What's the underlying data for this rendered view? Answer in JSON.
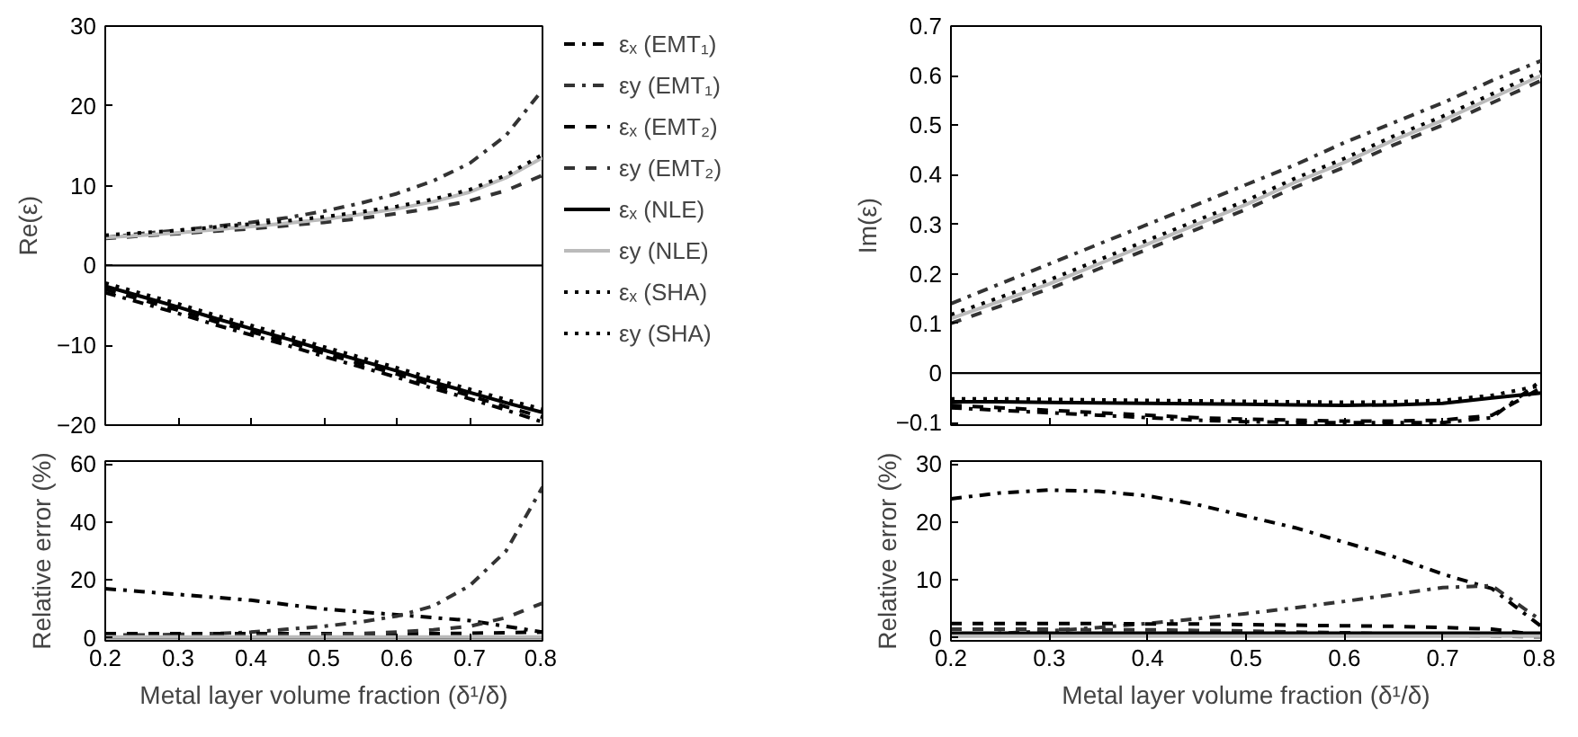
{
  "chart_data": [
    {
      "type": "line",
      "ylabel": "Re(ε)",
      "x": [
        0.2,
        0.25,
        0.3,
        0.35,
        0.4,
        0.45,
        0.5,
        0.55,
        0.6,
        0.65,
        0.7,
        0.75,
        0.8
      ],
      "xlim": [
        0.2,
        0.8
      ],
      "xticks": [
        0.2,
        0.3,
        0.4,
        0.5,
        0.6,
        0.7,
        0.8
      ],
      "ylim": [
        -20,
        30
      ],
      "yticks": [
        -20,
        -10,
        0,
        10,
        20,
        30
      ],
      "tick_labels": "y",
      "legend": "right",
      "ref_lines": [
        {
          "axis": "y",
          "value": 0,
          "color": "#000000"
        }
      ],
      "series": [
        {
          "name": "εₓ (EMT₁)",
          "color": "#000000",
          "line_style": "dashdot",
          "values": [
            -3.4,
            -4.7,
            -6,
            -7.4,
            -8.7,
            -10,
            -11.4,
            -12.7,
            -14,
            -15.4,
            -16.7,
            -18.1,
            -19.6
          ]
        },
        {
          "name": "εy (EMT₁)",
          "color": "#333333",
          "line_style": "dashdot",
          "values": [
            3.5,
            4,
            4.4,
            4.9,
            5.4,
            6,
            6.8,
            7.8,
            9,
            10.6,
            12.8,
            16.3,
            22
          ]
        },
        {
          "name": "εₓ (EMT₂)",
          "color": "#000000",
          "line_style": "dashed",
          "values": [
            -3,
            -4.3,
            -5.6,
            -7,
            -8.3,
            -9.6,
            -11,
            -12.3,
            -13.6,
            -15,
            -16.3,
            -17.7,
            -19
          ]
        },
        {
          "name": "εy (EMT₂)",
          "color": "#333333",
          "line_style": "dashed",
          "values": [
            3.4,
            3.7,
            4,
            4.3,
            4.6,
            5,
            5.4,
            5.9,
            6.5,
            7.2,
            8.1,
            9.4,
            11.3
          ]
        },
        {
          "name": "εₓ (NLE)",
          "color": "#000000",
          "line_style": "solid",
          "values": [
            -2.6,
            -3.9,
            -5.2,
            -6.6,
            -7.9,
            -9.2,
            -10.6,
            -11.9,
            -13.2,
            -14.6,
            -15.9,
            -17.2,
            -18.4
          ]
        },
        {
          "name": "εy (NLE)",
          "color": "#bbbbbb",
          "line_style": "solid",
          "values": [
            3.5,
            3.8,
            4.1,
            4.5,
            4.9,
            5.3,
            5.8,
            6.4,
            7.1,
            8,
            9.2,
            11,
            13.5
          ]
        },
        {
          "name": "εₓ (SHA)",
          "color": "#000000",
          "line_style": "dotted",
          "values": [
            -2.2,
            -3.5,
            -4.8,
            -6.2,
            -7.5,
            -8.8,
            -10.2,
            -11.5,
            -12.8,
            -14.2,
            -15.5,
            -16.8,
            -18
          ]
        },
        {
          "name": "εy (SHA)",
          "color": "#000000",
          "line_style": "dotted",
          "values": [
            3.8,
            4.1,
            4.4,
            4.8,
            5.2,
            5.6,
            6.1,
            6.7,
            7.4,
            8.3,
            9.5,
            11.3,
            13.9
          ]
        }
      ]
    },
    {
      "type": "line",
      "ylabel": "Relative error (%)",
      "xlabel": "Metal layer volume fraction (δ¹/δ)",
      "x": [
        0.2,
        0.25,
        0.3,
        0.35,
        0.4,
        0.45,
        0.5,
        0.55,
        0.6,
        0.65,
        0.7,
        0.75,
        0.8
      ],
      "xlim": [
        0.2,
        0.8
      ],
      "xticks": [
        0.2,
        0.3,
        0.4,
        0.5,
        0.6,
        0.7,
        0.8
      ],
      "ylim": [
        -1,
        61
      ],
      "yticks": [
        0,
        20,
        40,
        60
      ],
      "series": [
        {
          "color": "#000000",
          "line_style": "dashdot",
          "values": [
            17,
            16,
            15,
            14,
            13,
            11.5,
            10,
            9,
            8,
            7,
            6,
            4,
            2
          ]
        },
        {
          "color": "#333333",
          "line_style": "dashdot",
          "values": [
            1,
            1,
            1.2,
            1.5,
            2,
            3,
            4,
            5.5,
            7.5,
            11,
            18,
            30,
            52
          ]
        },
        {
          "color": "#000000",
          "line_style": "dashed",
          "values": [
            1.5,
            1.5,
            1.5,
            1.5,
            1.5,
            1.5,
            1.5,
            1.5,
            1.5,
            1.5,
            1.6,
            1.8,
            2
          ]
        },
        {
          "color": "#333333",
          "line_style": "dashed",
          "values": [
            0.5,
            0.5,
            0.6,
            0.7,
            0.8,
            1,
            1.2,
            1.5,
            2,
            2.8,
            4,
            7,
            12
          ]
        },
        {
          "color": "#000000",
          "line_style": "solid",
          "values": [
            0.2,
            0.2,
            0.2,
            0.2,
            0.2,
            0.2,
            0.2,
            0.2,
            0.2,
            0.2,
            0.2,
            0.2,
            0.2
          ]
        },
        {
          "color": "#bbbbbb",
          "line_style": "solid",
          "values": [
            0.3,
            0.3,
            0.3,
            0.3,
            0.3,
            0.3,
            0.3,
            0.3,
            0.3,
            0.3,
            0.3,
            0.3,
            0.3
          ]
        }
      ]
    },
    {
      "type": "line",
      "ylabel": "Im(ε)",
      "x": [
        0.2,
        0.25,
        0.3,
        0.35,
        0.4,
        0.45,
        0.5,
        0.55,
        0.6,
        0.65,
        0.7,
        0.75,
        0.8
      ],
      "xlim": [
        0.2,
        0.8
      ],
      "xticks": [
        0.2,
        0.3,
        0.4,
        0.5,
        0.6,
        0.7,
        0.8
      ],
      "ylim": [
        -0.105,
        0.7
      ],
      "yticks": [
        -0.1,
        0,
        0.1,
        0.2,
        0.3,
        0.4,
        0.5,
        0.6,
        0.7
      ],
      "tick_labels": "y",
      "ref_lines": [
        {
          "axis": "y",
          "value": 0,
          "color": "#000000"
        }
      ],
      "series": [
        {
          "color": "#000000",
          "line_style": "dashdot",
          "values": [
            -0.07,
            -0.075,
            -0.08,
            -0.085,
            -0.09,
            -0.095,
            -0.098,
            -0.1,
            -0.1,
            -0.1,
            -0.1,
            -0.09,
            -0.015
          ]
        },
        {
          "color": "#333333",
          "line_style": "dashdot",
          "values": [
            0.14,
            0.18,
            0.22,
            0.26,
            0.3,
            0.34,
            0.38,
            0.42,
            0.465,
            0.505,
            0.545,
            0.59,
            0.63
          ]
        },
        {
          "color": "#000000",
          "line_style": "dashed",
          "values": [
            -0.065,
            -0.07,
            -0.075,
            -0.08,
            -0.085,
            -0.09,
            -0.093,
            -0.095,
            -0.097,
            -0.097,
            -0.095,
            -0.085,
            -0.03
          ]
        },
        {
          "color": "#333333",
          "line_style": "dashed",
          "values": [
            0.1,
            0.135,
            0.17,
            0.21,
            0.25,
            0.29,
            0.33,
            0.375,
            0.415,
            0.46,
            0.5,
            0.545,
            0.59
          ]
        },
        {
          "color": "#000000",
          "line_style": "solid",
          "values": [
            -0.058,
            -0.058,
            -0.059,
            -0.06,
            -0.061,
            -0.062,
            -0.063,
            -0.064,
            -0.065,
            -0.064,
            -0.061,
            -0.05,
            -0.04
          ]
        },
        {
          "color": "#bbbbbb",
          "line_style": "solid",
          "values": [
            0.11,
            0.145,
            0.18,
            0.22,
            0.26,
            0.3,
            0.34,
            0.385,
            0.425,
            0.47,
            0.51,
            0.555,
            0.6
          ]
        },
        {
          "color": "#000000",
          "line_style": "dotted",
          "values": [
            -0.052,
            -0.052,
            -0.053,
            -0.054,
            -0.055,
            -0.056,
            -0.057,
            -0.058,
            -0.059,
            -0.058,
            -0.055,
            -0.045,
            -0.025
          ]
        },
        {
          "color": "#000000",
          "line_style": "dotted",
          "values": [
            0.118,
            0.153,
            0.188,
            0.228,
            0.268,
            0.308,
            0.348,
            0.393,
            0.433,
            0.478,
            0.518,
            0.563,
            0.608
          ]
        }
      ]
    },
    {
      "type": "line",
      "ylabel": "Relative error (%)",
      "xlabel": "Metal layer volume fraction (δ¹/δ)",
      "x": [
        0.2,
        0.25,
        0.3,
        0.35,
        0.4,
        0.45,
        0.5,
        0.55,
        0.6,
        0.65,
        0.7,
        0.75,
        0.8
      ],
      "xlim": [
        0.2,
        0.8
      ],
      "xticks": [
        0.2,
        0.3,
        0.4,
        0.5,
        0.6,
        0.7,
        0.8
      ],
      "ylim": [
        -0.5,
        30.5
      ],
      "yticks": [
        0,
        10,
        20,
        30
      ],
      "series": [
        {
          "color": "#000000",
          "line_style": "dashdot",
          "values": [
            24,
            25,
            25.5,
            25.3,
            24.5,
            23,
            21,
            19,
            16.5,
            14,
            11,
            8.5,
            2
          ]
        },
        {
          "color": "#333333",
          "line_style": "dashdot",
          "values": [
            0.5,
            0.8,
            1.2,
            1.8,
            2.5,
            3.3,
            4.2,
            5.2,
            6.3,
            7.5,
            8.7,
            9,
            3
          ]
        },
        {
          "color": "#000000",
          "line_style": "dashed",
          "values": [
            2.5,
            2.5,
            2.5,
            2.5,
            2.4,
            2.4,
            2.3,
            2.2,
            2.1,
            2,
            1.8,
            1.5,
            0.5
          ]
        },
        {
          "color": "#333333",
          "line_style": "dashed",
          "values": [
            1.5,
            1.5,
            1.5,
            1.4,
            1.4,
            1.3,
            1.2,
            1,
            0.9,
            0.7,
            0.5,
            0.3,
            0.2
          ]
        },
        {
          "color": "#000000",
          "line_style": "solid",
          "values": [
            0.8,
            0.8,
            0.8,
            0.8,
            0.8,
            0.8,
            0.8,
            0.8,
            0.8,
            0.8,
            0.8,
            0.8,
            0.8
          ]
        },
        {
          "color": "#bbbbbb",
          "line_style": "solid",
          "values": [
            0.3,
            0.3,
            0.3,
            0.3,
            0.3,
            0.3,
            0.3,
            0.3,
            0.3,
            0.3,
            0.3,
            0.3,
            0.3
          ]
        }
      ]
    }
  ]
}
